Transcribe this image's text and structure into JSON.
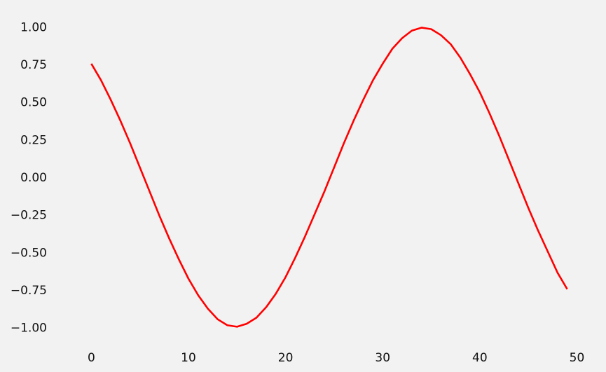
{
  "chart_data": {
    "type": "line",
    "title": "",
    "xlabel": "",
    "ylabel": "",
    "grid": false,
    "xlim": [
      -3.2,
      52.2
    ],
    "ylim": [
      -1.1,
      1.1
    ],
    "xticks": [
      {
        "value": 0,
        "label": "0"
      },
      {
        "value": 10,
        "label": "10"
      },
      {
        "value": 20,
        "label": "20"
      },
      {
        "value": 30,
        "label": "30"
      },
      {
        "value": 40,
        "label": "40"
      },
      {
        "value": 50,
        "label": "50"
      }
    ],
    "yticks": [
      {
        "value": 1.0,
        "label": "1.00"
      },
      {
        "value": 0.75,
        "label": "0.75"
      },
      {
        "value": 0.5,
        "label": "0.50"
      },
      {
        "value": 0.25,
        "label": "0.25"
      },
      {
        "value": 0.0,
        "label": "0.00"
      },
      {
        "value": -0.25,
        "label": "−0.25"
      },
      {
        "value": -0.5,
        "label": "−0.50"
      },
      {
        "value": -0.75,
        "label": "−0.75"
      },
      {
        "value": -1.0,
        "label": "−1.00"
      }
    ],
    "series": [
      {
        "color": "#ff0000",
        "x": [
          0,
          1,
          2,
          3,
          4,
          5,
          6,
          7,
          8,
          9,
          10,
          11,
          12,
          13,
          14,
          15,
          16,
          17,
          18,
          19,
          20,
          21,
          22,
          23,
          24,
          25,
          26,
          27,
          28,
          29,
          30,
          31,
          32,
          33,
          34,
          35,
          36,
          37,
          38,
          39,
          40,
          41,
          42,
          43,
          44,
          45,
          46,
          47,
          48,
          49
        ],
        "y": [
          0.76,
          0.65,
          0.52,
          0.38,
          0.23,
          0.07,
          -0.09,
          -0.25,
          -0.4,
          -0.54,
          -0.67,
          -0.78,
          -0.87,
          -0.94,
          -0.98,
          -0.99,
          -0.97,
          -0.93,
          -0.86,
          -0.77,
          -0.66,
          -0.53,
          -0.39,
          -0.24,
          -0.09,
          0.07,
          0.23,
          0.38,
          0.52,
          0.65,
          0.76,
          0.86,
          0.93,
          0.98,
          1.0,
          0.99,
          0.95,
          0.89,
          0.8,
          0.69,
          0.57,
          0.43,
          0.28,
          0.12,
          -0.04,
          -0.2,
          -0.35,
          -0.49,
          -0.63,
          -0.74
        ]
      }
    ]
  }
}
